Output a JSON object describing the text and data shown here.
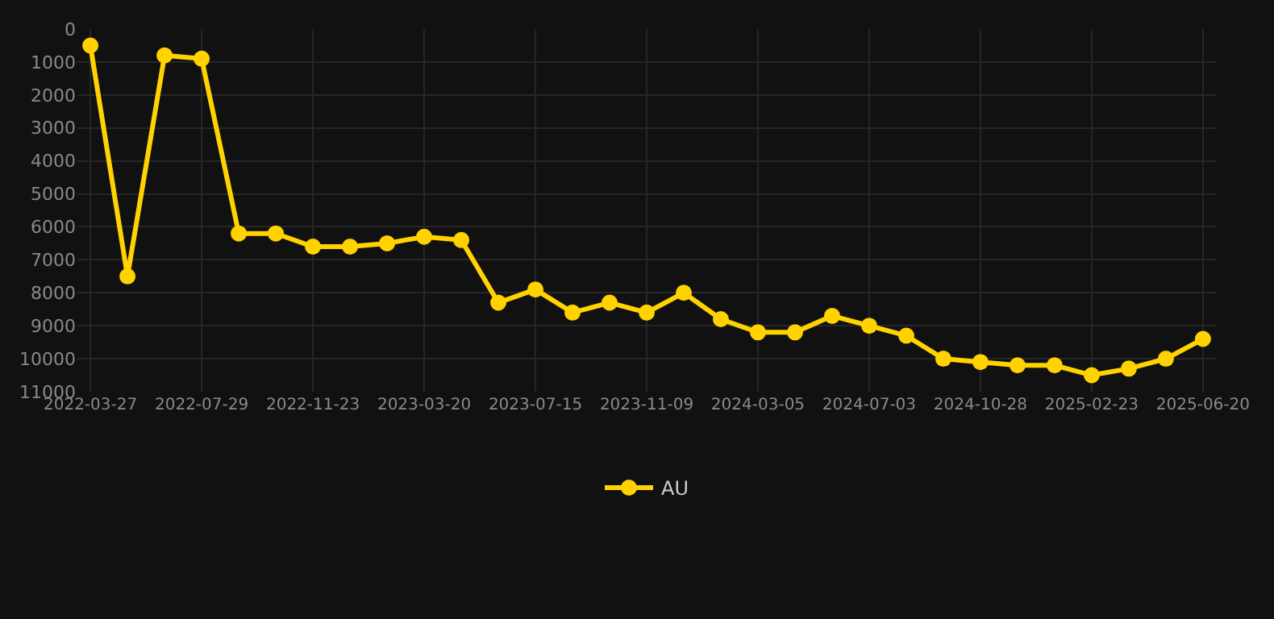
{
  "chart_data": {
    "type": "line",
    "categories": [
      "2022-03-27",
      null,
      null,
      "2022-07-29",
      null,
      null,
      "2022-11-23",
      null,
      null,
      "2023-03-20",
      null,
      null,
      "2023-07-15",
      null,
      null,
      "2023-11-09",
      null,
      null,
      "2024-03-05",
      null,
      null,
      "2024-07-03",
      null,
      null,
      "2024-10-28",
      null,
      null,
      "2025-02-23",
      null,
      null,
      "2025-06-20"
    ],
    "series": [
      {
        "name": "AU",
        "color": "#ffd200",
        "values": [
          500,
          7500,
          800,
          900,
          6200,
          6200,
          6600,
          6600,
          6500,
          6300,
          6400,
          8300,
          7900,
          8600,
          8300,
          8600,
          8000,
          8800,
          9200,
          9200,
          8700,
          9000,
          9300,
          10000,
          10100,
          10200,
          10200,
          10500,
          10300,
          10000,
          9400
        ]
      }
    ],
    "ylim": [
      11000,
      0
    ],
    "yticks": [
      0,
      1000,
      2000,
      3000,
      4000,
      5000,
      6000,
      7000,
      8000,
      9000,
      10000,
      11000
    ],
    "grid": true,
    "legend": "bottom",
    "marker": "circle",
    "line_style": "solid"
  }
}
